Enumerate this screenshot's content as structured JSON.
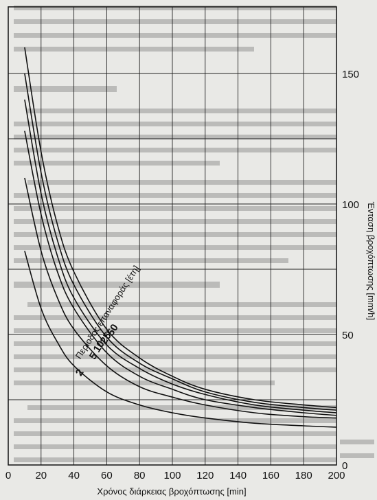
{
  "chart_data": {
    "type": "line",
    "xlabel": "Χρόνος διάρκειας βροχόπτωσης [min]",
    "ylabel": "Ένταση βροχόπτωσης [mm/h]",
    "legend_title": "Περίοδος επαναφοράς [έτη]",
    "xlim": [
      0,
      200
    ],
    "ylim": [
      0,
      160
    ],
    "x_ticks": [
      0,
      20,
      40,
      60,
      80,
      100,
      120,
      140,
      160,
      180,
      200
    ],
    "y_ticks": [
      0,
      50,
      100,
      150
    ],
    "grid": true,
    "line_color": "#111111",
    "series": [
      {
        "name": "50",
        "x": [
          10,
          20,
          30,
          40,
          60,
          80,
          100,
          120,
          150,
          180,
          200
        ],
        "y": [
          160,
          120,
          92,
          74,
          52,
          41,
          34,
          29,
          25,
          23,
          22
        ]
      },
      {
        "name": "25",
        "x": [
          10,
          20,
          30,
          40,
          60,
          80,
          100,
          120,
          150,
          180,
          200
        ],
        "y": [
          150,
          112,
          86,
          69,
          49,
          39,
          33,
          28,
          24,
          22,
          21
        ]
      },
      {
        "name": "10",
        "x": [
          10,
          20,
          30,
          40,
          60,
          80,
          100,
          120,
          150,
          180,
          200
        ],
        "y": [
          140,
          104,
          80,
          64,
          46,
          37,
          31,
          27,
          23,
          21,
          20
        ]
      },
      {
        "name": "5",
        "x": [
          10,
          20,
          30,
          40,
          60,
          80,
          100,
          120,
          150,
          180,
          200
        ],
        "y": [
          128,
          96,
          74,
          60,
          43,
          34,
          29,
          25,
          22,
          20,
          19
        ]
      },
      {
        "name": "2",
        "x": [
          10,
          20,
          30,
          40,
          60,
          80,
          100,
          120,
          150,
          180,
          200
        ],
        "y": [
          110,
          82,
          64,
          52,
          38,
          30,
          26,
          23,
          20,
          18.5,
          18
        ]
      },
      {
        "name": "1",
        "x": [
          10,
          20,
          30,
          40,
          60,
          80,
          100,
          120,
          150,
          180,
          200
        ],
        "y": [
          82,
          60,
          47,
          38,
          28,
          23,
          20,
          18,
          16,
          15,
          14.5
        ]
      }
    ],
    "curve_labels": [
      "2",
      "5",
      "10",
      "25",
      "50"
    ]
  }
}
